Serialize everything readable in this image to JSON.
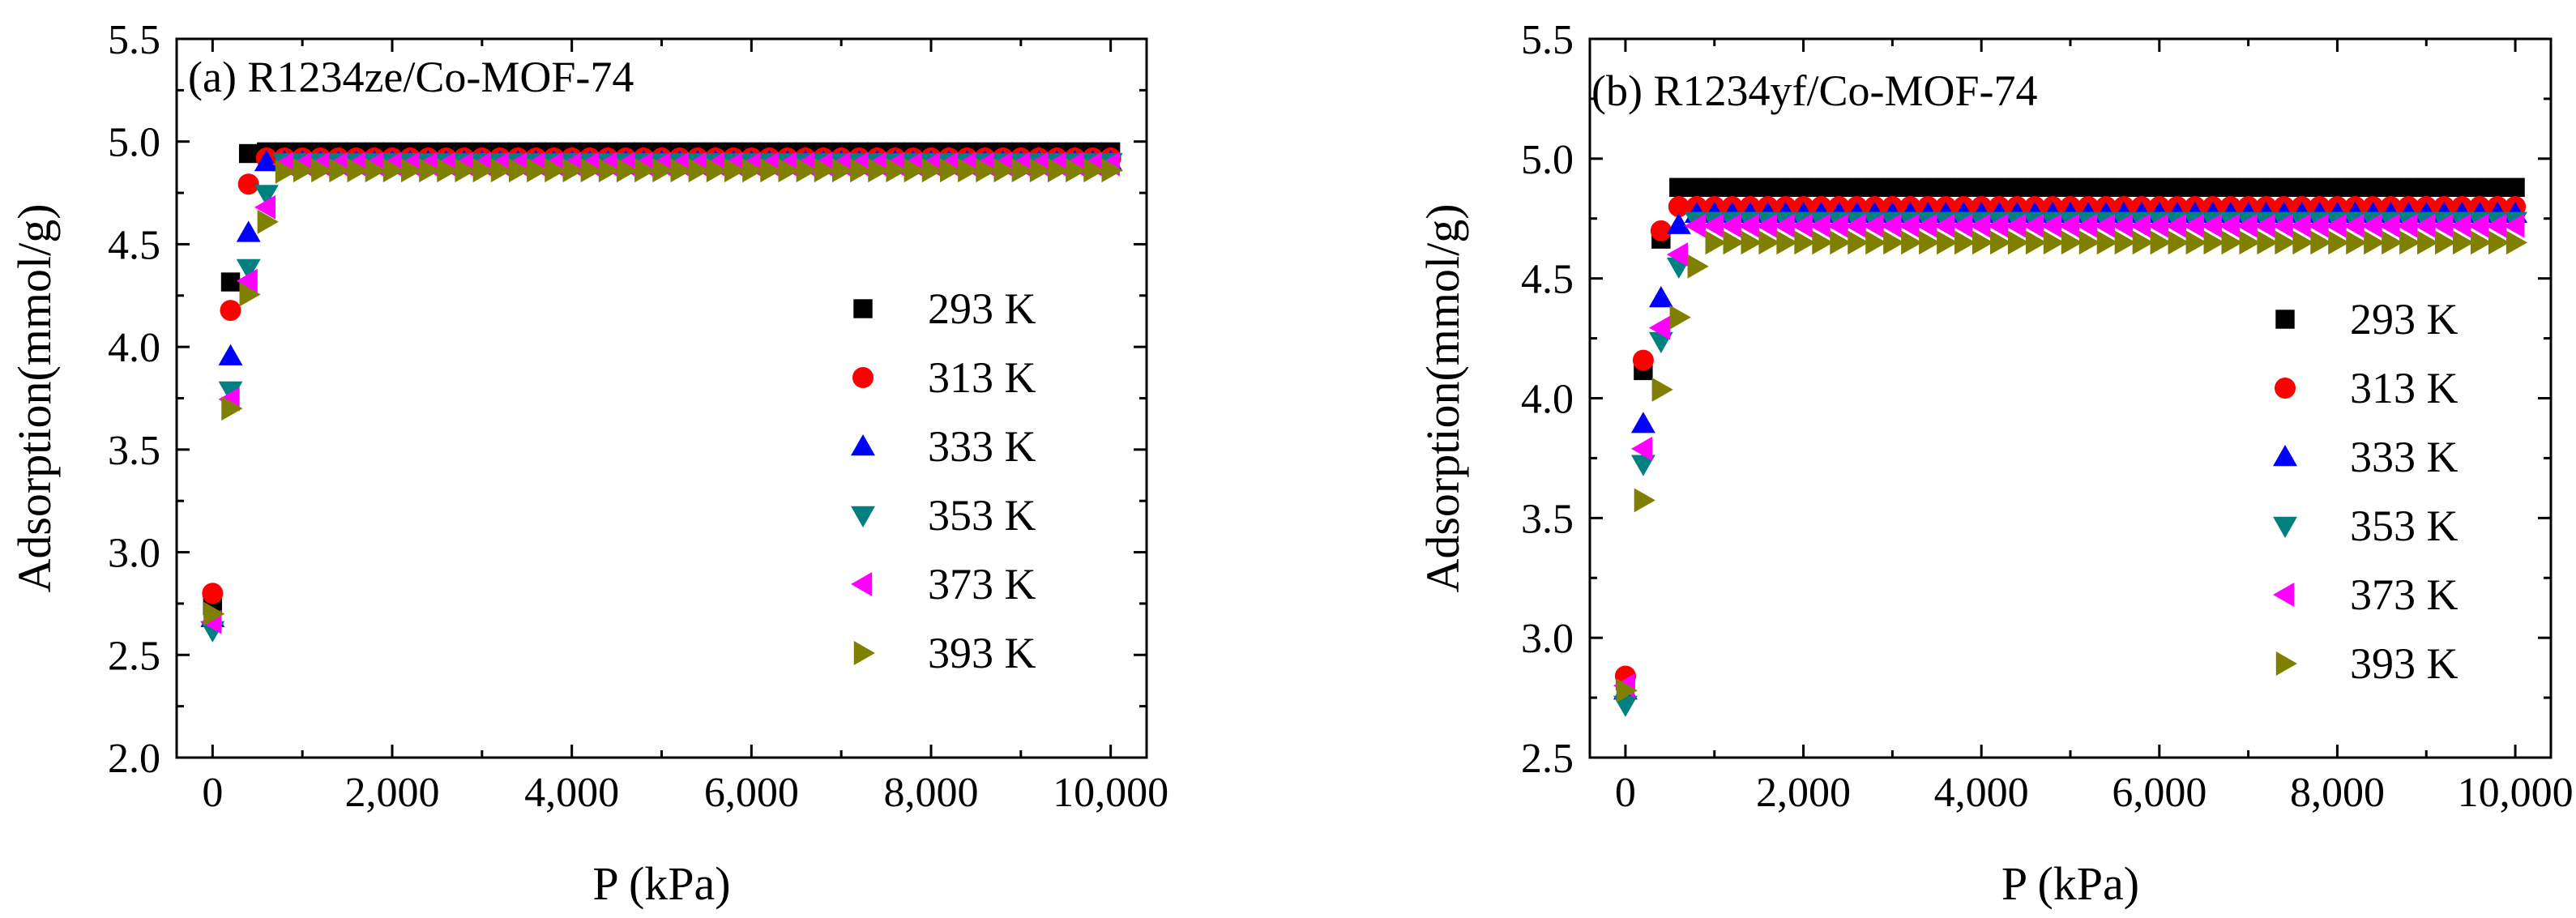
{
  "chart_data": [
    {
      "type": "scatter",
      "title": "(a) R1234ze/Co-MOF-74",
      "xlabel": "P (kPa)",
      "ylabel": "Adsorption(mmol/g)",
      "xlim": [
        -400,
        10400
      ],
      "ylim": [
        2.0,
        5.5
      ],
      "xticks": [
        0,
        2000,
        4000,
        6000,
        8000,
        10000
      ],
      "xtick_labels": [
        "0",
        "2,000",
        "4,000",
        "6,000",
        "8,000",
        "10,000"
      ],
      "yticks": [
        2.0,
        2.5,
        3.0,
        3.5,
        4.0,
        4.5,
        5.0,
        5.5
      ],
      "ytick_labels": [
        "2.0",
        "2.5",
        "3.0",
        "3.5",
        "4.0",
        "4.5",
        "5.0",
        "5.5"
      ],
      "legend_position": "right",
      "series": [
        {
          "name": "293 K",
          "marker": "square",
          "color": "#000000",
          "curve": {
            "q0": 2.74,
            "qs": 3.65,
            "b": 0.0038,
            "qmax": 4.95
          }
        },
        {
          "name": "313 K",
          "marker": "circle",
          "color": "#ff0000",
          "curve": {
            "q0": 2.8,
            "qs": 3.6,
            "b": 0.0031,
            "qmax": 4.92
          }
        },
        {
          "name": "333 K",
          "marker": "triangle-up",
          "color": "#0000ff",
          "curve": {
            "q0": 2.68,
            "qs": 3.55,
            "b": 0.0028,
            "qmax": 4.9
          }
        },
        {
          "name": "353 K",
          "marker": "triangle-down",
          "color": "#008080",
          "curve": {
            "q0": 2.62,
            "qs": 3.6,
            "b": 0.0024,
            "qmax": 4.9
          }
        },
        {
          "name": "373 K",
          "marker": "triangle-left",
          "color": "#ff00ff",
          "curve": {
            "q0": 2.66,
            "qs": 3.55,
            "b": 0.0022,
            "qmax": 4.89
          }
        },
        {
          "name": "393 K",
          "marker": "triangle-right",
          "color": "#808000",
          "curve": {
            "q0": 2.7,
            "qs": 3.5,
            "b": 0.002,
            "qmax": 4.86
          }
        }
      ]
    },
    {
      "type": "scatter",
      "title": "(b) R1234yf/Co-MOF-74",
      "xlabel": "P (kPa)",
      "ylabel": "Adsorption(mmol/g)",
      "xlim": [
        -400,
        10400
      ],
      "ylim": [
        2.5,
        5.5
      ],
      "xticks": [
        0,
        2000,
        4000,
        6000,
        8000,
        10000
      ],
      "xtick_labels": [
        "0",
        "2,000",
        "4,000",
        "6,000",
        "8,000",
        "10,000"
      ],
      "yticks": [
        2.5,
        3.0,
        3.5,
        4.0,
        4.5,
        5.0,
        5.5
      ],
      "ytick_labels": [
        "2.5",
        "3.0",
        "3.5",
        "4.0",
        "4.5",
        "5.0",
        "5.5"
      ],
      "legend_position": "right",
      "series": [
        {
          "name": "293 K",
          "marker": "square",
          "color": "#000000",
          "curve": {
            "q0": 2.82,
            "qs": 3.2,
            "b": 0.0034,
            "qmax": 4.88
          }
        },
        {
          "name": "313 K",
          "marker": "circle",
          "color": "#ff0000",
          "curve": {
            "q0": 2.84,
            "qs": 3.15,
            "b": 0.0036,
            "qmax": 4.8
          }
        },
        {
          "name": "333 K",
          "marker": "triangle-up",
          "color": "#0000ff",
          "curve": {
            "q0": 2.78,
            "qs": 3.1,
            "b": 0.0028,
            "qmax": 4.77
          }
        },
        {
          "name": "353 K",
          "marker": "triangle-down",
          "color": "#008080",
          "curve": {
            "q0": 2.72,
            "qs": 3.1,
            "b": 0.0024,
            "qmax": 4.74
          }
        },
        {
          "name": "373 K",
          "marker": "triangle-left",
          "color": "#ff00ff",
          "curve": {
            "q0": 2.8,
            "qs": 3.05,
            "b": 0.0024,
            "qmax": 4.72
          }
        },
        {
          "name": "393 K",
          "marker": "triangle-right",
          "color": "#808000",
          "curve": {
            "q0": 2.78,
            "qs": 3.0,
            "b": 0.0018,
            "qmax": 4.65
          }
        }
      ]
    }
  ]
}
